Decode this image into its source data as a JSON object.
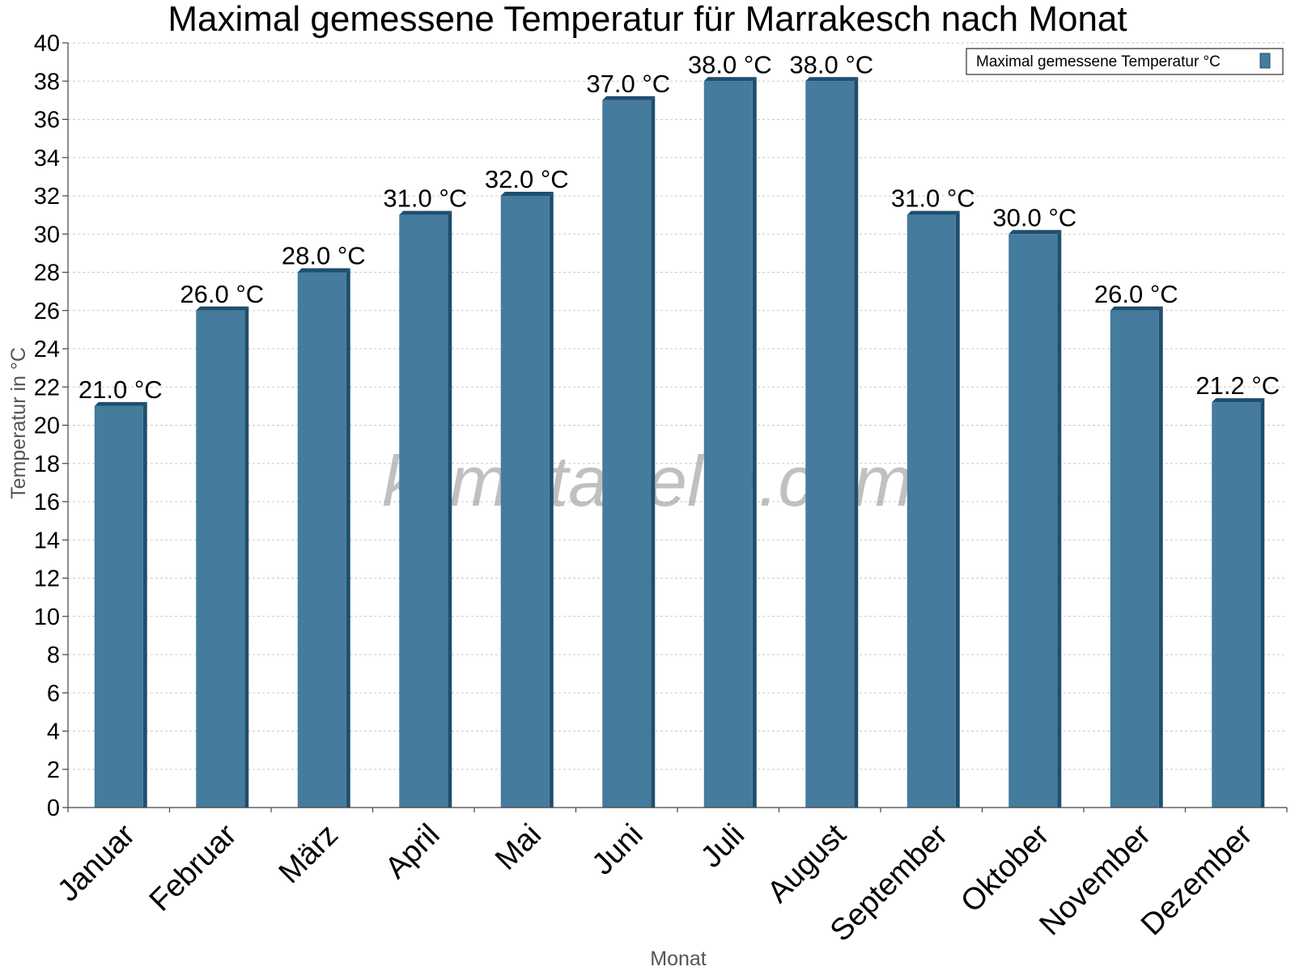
{
  "chart_data": {
    "type": "bar",
    "title": "Maximal gemessene Temperatur für Marrakesch nach Monat",
    "xlabel": "Monat",
    "ylabel": "Temperatur in °C",
    "ylim": [
      0,
      40
    ],
    "y_tick_step": 2,
    "grid": true,
    "legend_position": "top-right",
    "categories": [
      "Januar",
      "Februar",
      "März",
      "April",
      "Mai",
      "Juni",
      "Juli",
      "August",
      "September",
      "Oktober",
      "November",
      "Dezember"
    ],
    "series": [
      {
        "name": "Maximal gemessene Temperatur °C",
        "color": "#457b9d",
        "values": [
          21.0,
          26.0,
          28.0,
          31.0,
          32.0,
          37.0,
          38.0,
          38.0,
          31.0,
          30.0,
          26.0,
          21.2
        ],
        "labels": [
          "21.0 °C",
          "26.0 °C",
          "28.0 °C",
          "31.0 °C",
          "32.0 °C",
          "37.0 °C",
          "38.0 °C",
          "38.0 °C",
          "31.0 °C",
          "30.0 °C",
          "26.0 °C",
          "21.2 °C"
        ]
      }
    ],
    "watermark": "klimatabelle.com"
  }
}
